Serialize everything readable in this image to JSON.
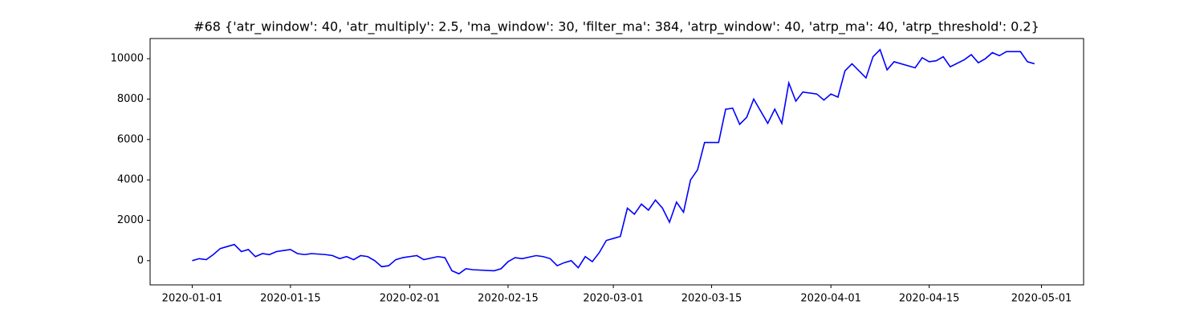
{
  "chart_data": {
    "type": "line",
    "title": "#68 {'atr_window': 40, 'atr_multiply': 2.5, 'ma_window': 30, 'filter_ma': 384, 'atrp_window': 40, 'atrp_ma': 40, 'atrp_threshold': 0.2}",
    "xlim": [
      "2019-12-26",
      "2020-05-07"
    ],
    "xticks": [
      "2020-01-01",
      "2020-01-15",
      "2020-02-01",
      "2020-02-15",
      "2020-03-01",
      "2020-03-15",
      "2020-04-01",
      "2020-04-15",
      "2020-05-01"
    ],
    "ylim": [
      -1200,
      11000
    ],
    "yticks": [
      0,
      2000,
      4000,
      6000,
      8000,
      10000
    ],
    "x": [
      "2020-01-01",
      "2020-01-02",
      "2020-01-03",
      "2020-01-04",
      "2020-01-05",
      "2020-01-06",
      "2020-01-07",
      "2020-01-08",
      "2020-01-09",
      "2020-01-10",
      "2020-01-11",
      "2020-01-12",
      "2020-01-13",
      "2020-01-14",
      "2020-01-15",
      "2020-01-16",
      "2020-01-17",
      "2020-01-18",
      "2020-01-20",
      "2020-01-21",
      "2020-01-22",
      "2020-01-23",
      "2020-01-24",
      "2020-01-25",
      "2020-01-26",
      "2020-01-27",
      "2020-01-28",
      "2020-01-29",
      "2020-01-30",
      "2020-01-31",
      "2020-02-01",
      "2020-02-02",
      "2020-02-03",
      "2020-02-05",
      "2020-02-06",
      "2020-02-07",
      "2020-02-08",
      "2020-02-09",
      "2020-02-10",
      "2020-02-13",
      "2020-02-14",
      "2020-02-15",
      "2020-02-16",
      "2020-02-17",
      "2020-02-19",
      "2020-02-20",
      "2020-02-21",
      "2020-02-22",
      "2020-02-23",
      "2020-02-24",
      "2020-02-25",
      "2020-02-26",
      "2020-02-27",
      "2020-02-28",
      "2020-02-29",
      "2020-03-02",
      "2020-03-03",
      "2020-03-04",
      "2020-03-05",
      "2020-03-06",
      "2020-03-07",
      "2020-03-08",
      "2020-03-09",
      "2020-03-10",
      "2020-03-11",
      "2020-03-12",
      "2020-03-13",
      "2020-03-14",
      "2020-03-16",
      "2020-03-17",
      "2020-03-18",
      "2020-03-19",
      "2020-03-20",
      "2020-03-21",
      "2020-03-23",
      "2020-03-24",
      "2020-03-25",
      "2020-03-26",
      "2020-03-27",
      "2020-03-28",
      "2020-03-30",
      "2020-03-31",
      "2020-04-01",
      "2020-04-02",
      "2020-04-03",
      "2020-04-04",
      "2020-04-06",
      "2020-04-07",
      "2020-04-08",
      "2020-04-09",
      "2020-04-10",
      "2020-04-13",
      "2020-04-14",
      "2020-04-15",
      "2020-04-16",
      "2020-04-17",
      "2020-04-18",
      "2020-04-20",
      "2020-04-21",
      "2020-04-22",
      "2020-04-23",
      "2020-04-24",
      "2020-04-25",
      "2020-04-26",
      "2020-04-28",
      "2020-04-29",
      "2020-04-30"
    ],
    "series": [
      {
        "color": "#0000ff",
        "values": [
          0,
          100,
          50,
          300,
          600,
          700,
          800,
          450,
          550,
          200,
          350,
          300,
          450,
          500,
          550,
          350,
          300,
          350,
          300,
          250,
          100,
          200,
          50,
          250,
          200,
          0,
          -300,
          -250,
          50,
          150,
          200,
          250,
          50,
          200,
          150,
          -500,
          -650,
          -400,
          -450,
          -500,
          -400,
          -50,
          150,
          100,
          250,
          200,
          100,
          -250,
          -100,
          0,
          -350,
          200,
          -50,
          400,
          1000,
          1200,
          2600,
          2300,
          2800,
          2500,
          3000,
          2600,
          1900,
          2900,
          2400,
          4000,
          4500,
          5850,
          5850,
          7500,
          7550,
          6750,
          7100,
          8000,
          6800,
          7500,
          6800,
          8800,
          7900,
          8350,
          8250,
          7950,
          8250,
          8100,
          9400,
          9750,
          9050,
          10100,
          10450,
          9450,
          9850,
          9550,
          10050,
          9850,
          9900,
          10100,
          9600,
          9950,
          10200,
          9800,
          10000,
          10300,
          10150,
          10350,
          10350,
          9850,
          9750
        ]
      }
    ]
  }
}
